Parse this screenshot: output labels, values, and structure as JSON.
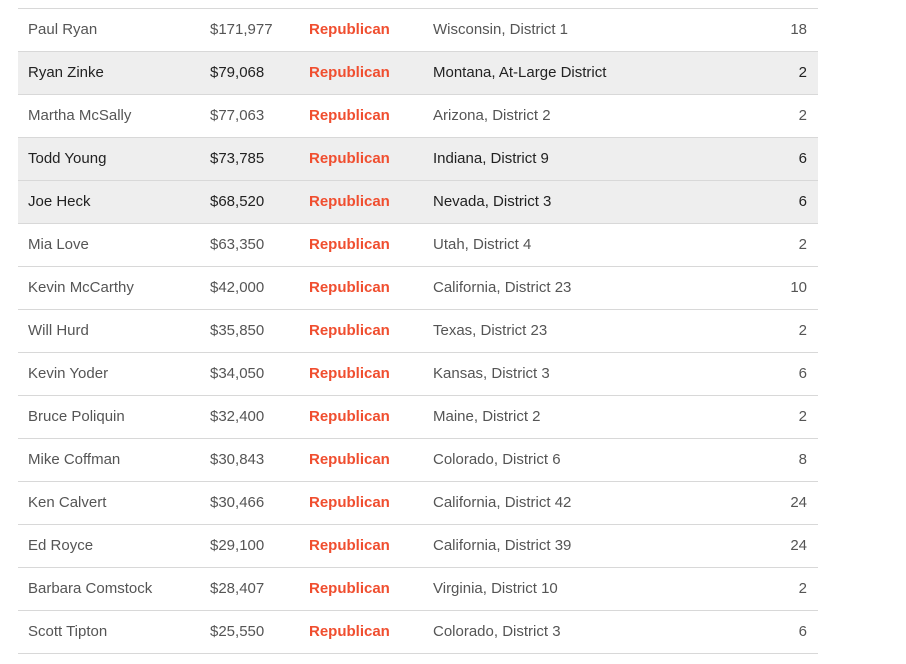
{
  "table": {
    "rows": [
      {
        "name": "Paul Ryan",
        "amount": "$171,977",
        "party": "Republican",
        "district": "Wisconsin, District 1",
        "years": "18",
        "highlighted": false
      },
      {
        "name": "Ryan Zinke",
        "amount": "$79,068",
        "party": "Republican",
        "district": "Montana, At-Large District",
        "years": "2",
        "highlighted": true
      },
      {
        "name": "Martha McSally",
        "amount": "$77,063",
        "party": "Republican",
        "district": "Arizona, District 2",
        "years": "2",
        "highlighted": false
      },
      {
        "name": "Todd Young",
        "amount": "$73,785",
        "party": "Republican",
        "district": "Indiana, District 9",
        "years": "6",
        "highlighted": true
      },
      {
        "name": "Joe Heck",
        "amount": "$68,520",
        "party": "Republican",
        "district": "Nevada, District 3",
        "years": "6",
        "highlighted": true
      },
      {
        "name": "Mia Love",
        "amount": "$63,350",
        "party": "Republican",
        "district": "Utah, District 4",
        "years": "2",
        "highlighted": false
      },
      {
        "name": "Kevin McCarthy",
        "amount": "$42,000",
        "party": "Republican",
        "district": "California, District 23",
        "years": "10",
        "highlighted": false
      },
      {
        "name": "Will Hurd",
        "amount": "$35,850",
        "party": "Republican",
        "district": "Texas, District 23",
        "years": "2",
        "highlighted": false
      },
      {
        "name": "Kevin Yoder",
        "amount": "$34,050",
        "party": "Republican",
        "district": "Kansas, District 3",
        "years": "6",
        "highlighted": false
      },
      {
        "name": "Bruce Poliquin",
        "amount": "$32,400",
        "party": "Republican",
        "district": "Maine, District 2",
        "years": "2",
        "highlighted": false
      },
      {
        "name": "Mike Coffman",
        "amount": "$30,843",
        "party": "Republican",
        "district": "Colorado, District 6",
        "years": "8",
        "highlighted": false
      },
      {
        "name": "Ken Calvert",
        "amount": "$30,466",
        "party": "Republican",
        "district": "California, District 42",
        "years": "24",
        "highlighted": false
      },
      {
        "name": "Ed Royce",
        "amount": "$29,100",
        "party": "Republican",
        "district": "California, District 39",
        "years": "24",
        "highlighted": false
      },
      {
        "name": "Barbara Comstock",
        "amount": "$28,407",
        "party": "Republican",
        "district": "Virginia, District 10",
        "years": "2",
        "highlighted": false
      },
      {
        "name": "Scott Tipton",
        "amount": "$25,550",
        "party": "Republican",
        "district": "Colorado, District 3",
        "years": "6",
        "highlighted": false
      }
    ]
  },
  "colors": {
    "party_republican": "#f04e2f",
    "row_highlight": "#eeeeee",
    "divider": "#d8d8d8"
  }
}
